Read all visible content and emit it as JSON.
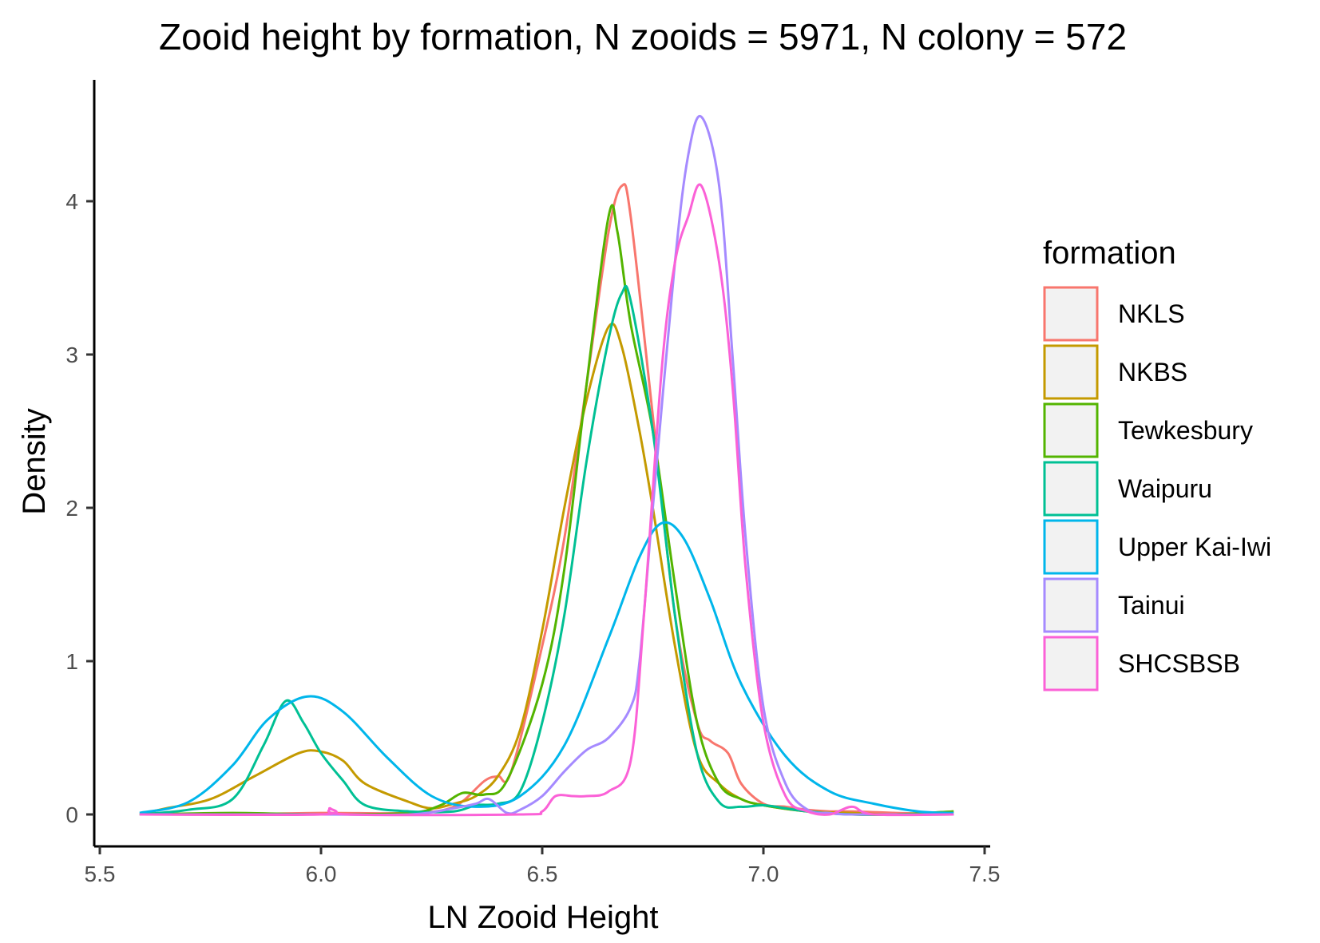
{
  "chart_data": {
    "type": "line",
    "title": "Zooid height by formation, N zooids = 5971, N colony = 572",
    "xlabel": "LN Zooid Height",
    "ylabel": "Density",
    "xlim": [
      5.5,
      7.5
    ],
    "ylim": [
      -0.18,
      4.9
    ],
    "x_ticks": [
      5.5,
      6.0,
      6.5,
      7.0,
      7.5
    ],
    "x_tick_labels": [
      "5.5",
      "6.0",
      "6.5",
      "7.0",
      "7.5"
    ],
    "y_ticks": [
      0,
      1,
      2,
      3,
      4
    ],
    "y_tick_labels": [
      "0",
      "1",
      "2",
      "3",
      "4"
    ],
    "grid": false,
    "legend": {
      "title": "formation",
      "placement": "right"
    },
    "series": [
      {
        "name": "NKLS",
        "color": "#F8766D",
        "points": [
          [
            5.59,
            0
          ],
          [
            5.8,
            0
          ],
          [
            6.0,
            0.01
          ],
          [
            6.2,
            0.01
          ],
          [
            6.3,
            0.05
          ],
          [
            6.37,
            0.22
          ],
          [
            6.4,
            0.25
          ],
          [
            6.43,
            0.28
          ],
          [
            6.5,
            1.1
          ],
          [
            6.55,
            1.8
          ],
          [
            6.6,
            2.8
          ],
          [
            6.65,
            3.8
          ],
          [
            6.68,
            4.1
          ],
          [
            6.7,
            3.9
          ],
          [
            6.75,
            2.6
          ],
          [
            6.8,
            1.3
          ],
          [
            6.85,
            0.6
          ],
          [
            6.88,
            0.48
          ],
          [
            6.92,
            0.4
          ],
          [
            6.95,
            0.2
          ],
          [
            7.0,
            0.07
          ],
          [
            7.05,
            0.05
          ],
          [
            7.1,
            0.03
          ],
          [
            7.15,
            0.02
          ],
          [
            7.2,
            0.02
          ],
          [
            7.3,
            0.01
          ],
          [
            7.43,
            0
          ]
        ]
      },
      {
        "name": "NKBS",
        "color": "#C49A00",
        "points": [
          [
            5.59,
            0
          ],
          [
            5.65,
            0.04
          ],
          [
            5.75,
            0.1
          ],
          [
            5.85,
            0.25
          ],
          [
            5.95,
            0.4
          ],
          [
            6.0,
            0.41
          ],
          [
            6.05,
            0.35
          ],
          [
            6.1,
            0.2
          ],
          [
            6.2,
            0.08
          ],
          [
            6.25,
            0.04
          ],
          [
            6.3,
            0.07
          ],
          [
            6.35,
            0.12
          ],
          [
            6.4,
            0.25
          ],
          [
            6.45,
            0.55
          ],
          [
            6.5,
            1.2
          ],
          [
            6.55,
            2.0
          ],
          [
            6.6,
            2.7
          ],
          [
            6.65,
            3.18
          ],
          [
            6.68,
            3.05
          ],
          [
            6.72,
            2.5
          ],
          [
            6.75,
            2.0
          ],
          [
            6.8,
            1.1
          ],
          [
            6.85,
            0.4
          ],
          [
            6.9,
            0.2
          ],
          [
            6.95,
            0.1
          ],
          [
            7.0,
            0.06
          ],
          [
            7.1,
            0.02
          ],
          [
            7.2,
            0.01
          ],
          [
            7.3,
            0
          ],
          [
            7.43,
            0.02
          ]
        ]
      },
      {
        "name": "Tewkesbury",
        "color": "#53B400",
        "points": [
          [
            5.59,
            0
          ],
          [
            5.8,
            0.01
          ],
          [
            6.0,
            0
          ],
          [
            6.2,
            0.01
          ],
          [
            6.27,
            0.06
          ],
          [
            6.32,
            0.14
          ],
          [
            6.37,
            0.13
          ],
          [
            6.42,
            0.22
          ],
          [
            6.5,
            0.85
          ],
          [
            6.55,
            1.6
          ],
          [
            6.6,
            2.8
          ],
          [
            6.65,
            3.9
          ],
          [
            6.67,
            3.8
          ],
          [
            6.7,
            3.2
          ],
          [
            6.75,
            2.5
          ],
          [
            6.8,
            1.5
          ],
          [
            6.85,
            0.6
          ],
          [
            6.9,
            0.2
          ],
          [
            6.95,
            0.1
          ],
          [
            7.0,
            0.06
          ],
          [
            7.1,
            0.02
          ],
          [
            7.2,
            0
          ],
          [
            7.3,
            0
          ],
          [
            7.43,
            0.02
          ]
        ]
      },
      {
        "name": "Waipuru",
        "color": "#00C094",
        "points": [
          [
            5.59,
            0
          ],
          [
            5.7,
            0.03
          ],
          [
            5.8,
            0.1
          ],
          [
            5.87,
            0.45
          ],
          [
            5.92,
            0.74
          ],
          [
            5.96,
            0.6
          ],
          [
            6.0,
            0.4
          ],
          [
            6.05,
            0.22
          ],
          [
            6.1,
            0.06
          ],
          [
            6.2,
            0.02
          ],
          [
            6.3,
            0.02
          ],
          [
            6.35,
            0.06
          ],
          [
            6.4,
            0.07
          ],
          [
            6.45,
            0.15
          ],
          [
            6.5,
            0.6
          ],
          [
            6.55,
            1.3
          ],
          [
            6.6,
            2.3
          ],
          [
            6.65,
            3.1
          ],
          [
            6.68,
            3.4
          ],
          [
            6.7,
            3.35
          ],
          [
            6.75,
            2.5
          ],
          [
            6.8,
            1.3
          ],
          [
            6.85,
            0.4
          ],
          [
            6.9,
            0.08
          ],
          [
            6.95,
            0.05
          ],
          [
            7.0,
            0.06
          ],
          [
            7.05,
            0.04
          ],
          [
            7.1,
            0.02
          ],
          [
            7.2,
            0
          ],
          [
            7.43,
            0
          ]
        ]
      },
      {
        "name": "Upper Kai-Iwi",
        "color": "#00B6EB",
        "points": [
          [
            5.59,
            0.01
          ],
          [
            5.7,
            0.08
          ],
          [
            5.8,
            0.32
          ],
          [
            5.88,
            0.62
          ],
          [
            5.97,
            0.77
          ],
          [
            6.05,
            0.67
          ],
          [
            6.15,
            0.37
          ],
          [
            6.25,
            0.12
          ],
          [
            6.35,
            0.05
          ],
          [
            6.45,
            0.12
          ],
          [
            6.55,
            0.45
          ],
          [
            6.65,
            1.15
          ],
          [
            6.72,
            1.68
          ],
          [
            6.77,
            1.9
          ],
          [
            6.82,
            1.8
          ],
          [
            6.88,
            1.4
          ],
          [
            6.95,
            0.85
          ],
          [
            7.05,
            0.38
          ],
          [
            7.15,
            0.15
          ],
          [
            7.25,
            0.07
          ],
          [
            7.35,
            0.02
          ],
          [
            7.43,
            0.01
          ]
        ]
      },
      {
        "name": "Tainui",
        "color": "#A58AFF",
        "points": [
          [
            5.59,
            0
          ],
          [
            6.0,
            0
          ],
          [
            6.2,
            0
          ],
          [
            6.3,
            0.04
          ],
          [
            6.35,
            0.07
          ],
          [
            6.38,
            0.1
          ],
          [
            6.42,
            0.01
          ],
          [
            6.45,
            0.03
          ],
          [
            6.5,
            0.12
          ],
          [
            6.55,
            0.28
          ],
          [
            6.6,
            0.42
          ],
          [
            6.65,
            0.5
          ],
          [
            6.7,
            0.7
          ],
          [
            6.72,
            1.0
          ],
          [
            6.75,
            2.0
          ],
          [
            6.8,
            3.6
          ],
          [
            6.83,
            4.3
          ],
          [
            6.86,
            4.55
          ],
          [
            6.9,
            4.1
          ],
          [
            6.93,
            3.0
          ],
          [
            6.96,
            1.8
          ],
          [
            7.0,
            0.7
          ],
          [
            7.05,
            0.2
          ],
          [
            7.1,
            0.03
          ],
          [
            7.15,
            0.01
          ],
          [
            7.2,
            0
          ],
          [
            7.43,
            0
          ]
        ]
      },
      {
        "name": "SHCSBSB",
        "color": "#FB61D7",
        "points": [
          [
            5.59,
            0
          ],
          [
            6.0,
            0
          ],
          [
            6.02,
            0.04
          ],
          [
            6.06,
            0
          ],
          [
            6.45,
            0
          ],
          [
            6.5,
            0.02
          ],
          [
            6.53,
            0.12
          ],
          [
            6.57,
            0.12
          ],
          [
            6.6,
            0.12
          ],
          [
            6.65,
            0.15
          ],
          [
            6.7,
            0.35
          ],
          [
            6.73,
            1.3
          ],
          [
            6.77,
            2.9
          ],
          [
            6.8,
            3.6
          ],
          [
            6.83,
            3.9
          ],
          [
            6.86,
            4.1
          ],
          [
            6.9,
            3.6
          ],
          [
            6.93,
            2.8
          ],
          [
            6.96,
            1.6
          ],
          [
            7.0,
            0.6
          ],
          [
            7.05,
            0.12
          ],
          [
            7.1,
            0.02
          ],
          [
            7.15,
            0
          ],
          [
            7.2,
            0.05
          ],
          [
            7.25,
            0
          ],
          [
            7.43,
            0
          ]
        ]
      }
    ]
  }
}
